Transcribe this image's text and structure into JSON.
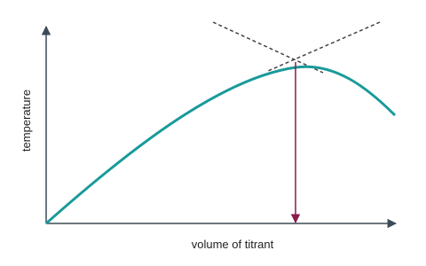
{
  "axes": {
    "y_label": "temperature",
    "x_label": "volume of titrant"
  }
}
